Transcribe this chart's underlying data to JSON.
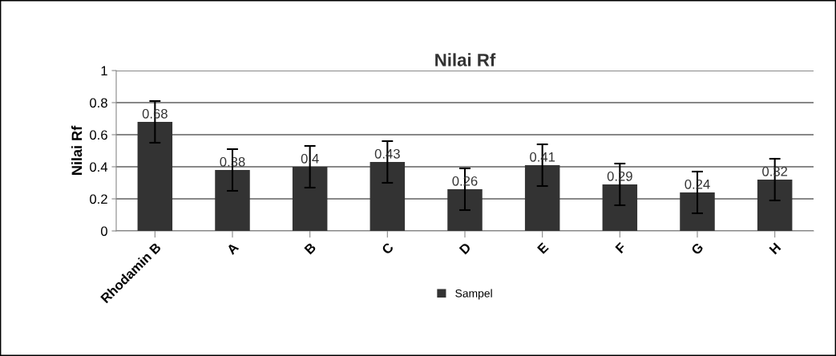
{
  "chart_data": {
    "type": "bar",
    "title": "Nilai Rf",
    "ylabel": "Nilai Rf",
    "categories": [
      "Rhodamin B",
      "A",
      "B",
      "C",
      "D",
      "E",
      "F",
      "G",
      "H"
    ],
    "series": [
      {
        "name": "Sampel",
        "color": "#333333",
        "values": [
          0.68,
          0.38,
          0.4,
          0.43,
          0.26,
          0.41,
          0.29,
          0.24,
          0.32
        ],
        "errors": [
          0.13,
          0.13,
          0.13,
          0.13,
          0.13,
          0.13,
          0.13,
          0.13,
          0.13
        ]
      }
    ],
    "ylim": [
      0,
      1
    ],
    "yticks": [
      0,
      0.2,
      0.4,
      0.6,
      0.8,
      1
    ],
    "grid": "y",
    "legend": "bottom",
    "data_labels": true
  }
}
